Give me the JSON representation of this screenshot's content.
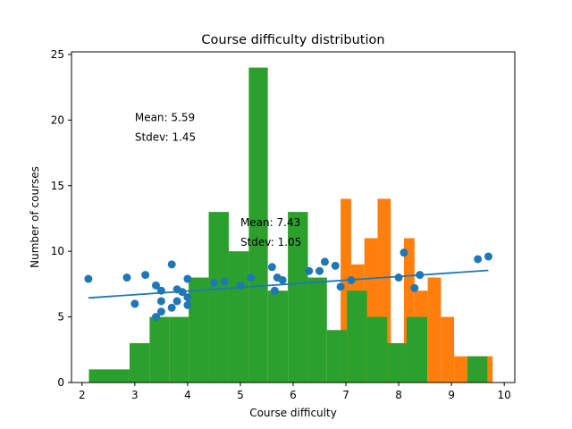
{
  "chart_data": {
    "type": "histogram",
    "title": "Course difficulty distribution",
    "xlabel": "Course difficulty",
    "ylabel": "Number of courses",
    "xlim": [
      1.8,
      10.2
    ],
    "ylim": [
      0,
      25.2
    ],
    "xticks": [
      2,
      3,
      4,
      5,
      6,
      7,
      8,
      9,
      10
    ],
    "yticks": [
      0,
      5,
      10,
      15,
      20,
      25
    ],
    "grid": false,
    "colors": {
      "scatter": "#1f77b4",
      "fit_line": "#1f77b4",
      "orange_bars": "#ff7f0e",
      "green_bars": "#2ca02c"
    },
    "series": [
      {
        "kind": "histogram",
        "color": "#ff7f0e",
        "bins": [
          [
            6.9,
            7.1,
            14
          ],
          [
            7.1,
            7.35,
            9
          ],
          [
            7.35,
            7.6,
            11
          ],
          [
            7.6,
            7.85,
            14
          ],
          [
            7.85,
            8.1,
            3
          ],
          [
            8.1,
            8.3,
            11
          ],
          [
            8.3,
            8.55,
            7
          ],
          [
            8.55,
            8.8,
            8
          ],
          [
            8.8,
            9.05,
            5
          ],
          [
            9.05,
            9.3,
            2
          ],
          [
            9.3,
            9.55,
            2
          ],
          [
            9.55,
            9.78,
            2
          ]
        ]
      },
      {
        "kind": "histogram",
        "color": "#2ca02c",
        "bins": [
          [
            2.13,
            2.52,
            1
          ],
          [
            2.52,
            2.9,
            1
          ],
          [
            2.9,
            3.28,
            3
          ],
          [
            3.28,
            3.66,
            5
          ],
          [
            3.66,
            4.02,
            5
          ],
          [
            4.02,
            4.4,
            8
          ],
          [
            4.4,
            4.78,
            13
          ],
          [
            4.78,
            5.16,
            10
          ],
          [
            5.16,
            5.52,
            24
          ],
          [
            5.52,
            5.9,
            7
          ],
          [
            5.9,
            6.28,
            13
          ],
          [
            6.28,
            6.64,
            8
          ],
          [
            6.64,
            6.88,
            4
          ],
          [
            6.88,
            7.02,
            4
          ],
          [
            7.02,
            7.4,
            7
          ],
          [
            7.4,
            7.78,
            5
          ],
          [
            7.78,
            8.15,
            3
          ],
          [
            8.15,
            8.54,
            5
          ],
          [
            8.54,
            9.3,
            0
          ],
          [
            9.3,
            9.68,
            2
          ]
        ]
      },
      {
        "kind": "scatter",
        "color": "#1f77b4",
        "points": [
          [
            2.12,
            7.9
          ],
          [
            2.85,
            8.0
          ],
          [
            3.0,
            6.0
          ],
          [
            3.2,
            8.2
          ],
          [
            3.4,
            7.4
          ],
          [
            3.5,
            7.0
          ],
          [
            3.5,
            6.2
          ],
          [
            3.5,
            5.4
          ],
          [
            3.4,
            5.0
          ],
          [
            3.7,
            9.0
          ],
          [
            3.7,
            5.7
          ],
          [
            3.8,
            7.1
          ],
          [
            3.8,
            6.2
          ],
          [
            3.9,
            6.9
          ],
          [
            4.0,
            7.9
          ],
          [
            4.0,
            6.5
          ],
          [
            4.0,
            5.9
          ],
          [
            4.5,
            7.6
          ],
          [
            4.7,
            7.7
          ],
          [
            5.0,
            7.4
          ],
          [
            5.2,
            8.0
          ],
          [
            5.6,
            8.8
          ],
          [
            5.65,
            7.0
          ],
          [
            5.7,
            8.0
          ],
          [
            5.8,
            7.8
          ],
          [
            6.3,
            8.5
          ],
          [
            6.5,
            8.5
          ],
          [
            6.6,
            9.2
          ],
          [
            6.8,
            8.9
          ],
          [
            6.9,
            7.3
          ],
          [
            7.1,
            7.8
          ],
          [
            8.0,
            8.0
          ],
          [
            8.1,
            9.9
          ],
          [
            8.3,
            7.2
          ],
          [
            8.4,
            8.2
          ],
          [
            9.5,
            9.4
          ],
          [
            9.7,
            9.6
          ]
        ]
      },
      {
        "kind": "line",
        "color": "#1f77b4",
        "x": [
          2.12,
          9.7
        ],
        "y": [
          6.45,
          8.55
        ]
      }
    ],
    "annotations": [
      {
        "mean": "Mean: 5.59",
        "stdev": "Stdev: 1.45",
        "x": 3.0,
        "y": 20.2
      },
      {
        "mean": "Mean: 7.43",
        "stdev": "Stdev: 1.05",
        "x": 5.0,
        "y": 12.2
      }
    ]
  }
}
